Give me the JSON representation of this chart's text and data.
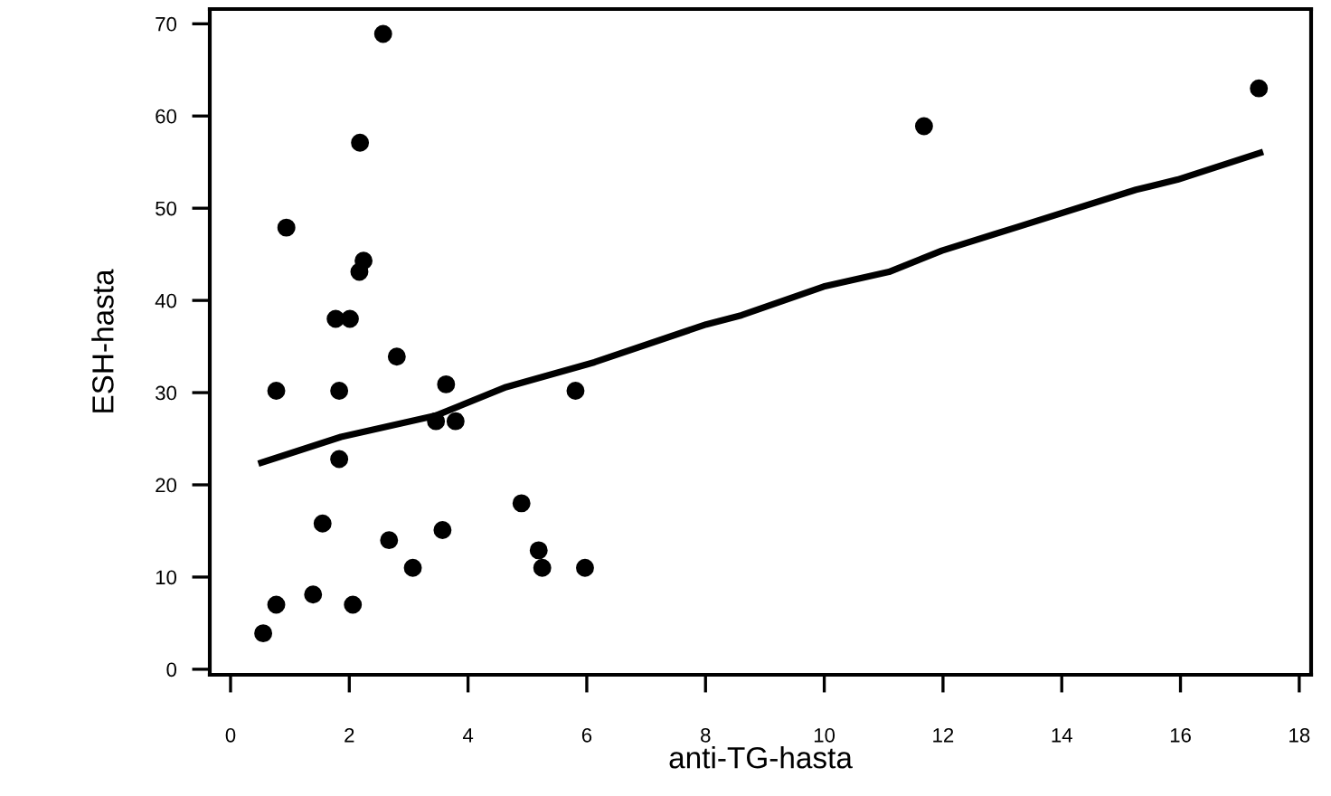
{
  "chart_data": {
    "type": "scatter",
    "xlabel": "anti-TG-hasta",
    "ylabel": "ESH-hasta",
    "xlim": [
      -0.35,
      18.2
    ],
    "ylim": [
      -0.6,
      71.6
    ],
    "xticks": [
      0,
      2,
      4,
      6,
      8,
      10,
      12,
      14,
      16,
      18
    ],
    "yticks": [
      0,
      10,
      20,
      30,
      40,
      50,
      60,
      70
    ],
    "grid": false,
    "legend": false,
    "marker": "circle",
    "series": [
      {
        "color": "#000000",
        "x": [
          0.77,
          1.83,
          3.63,
          5.81,
          3.46,
          3.79,
          1.83,
          4.9,
          1.55,
          3.57,
          2.67,
          5.19,
          5.25,
          5.97,
          3.07,
          1.39,
          0.77,
          2.06,
          0.55,
          2.57,
          2.18,
          0.94,
          2.24,
          2.17,
          1.77,
          2.01,
          2.8,
          11.68,
          17.32
        ],
        "values": [
          30.2,
          30.2,
          30.9,
          30.2,
          26.9,
          26.9,
          22.8,
          18.0,
          15.8,
          15.1,
          14.0,
          12.9,
          11.0,
          11.0,
          11.0,
          8.1,
          7.0,
          7.0,
          3.9,
          68.9,
          57.1,
          47.9,
          44.3,
          43.1,
          38.0,
          38.0,
          33.9,
          58.9,
          63.0
        ]
      },
      {
        "type": "line",
        "color": "#000000",
        "marker": "none",
        "line_style": "solid",
        "x": [
          0.52,
          1.86,
          3.45,
          4.64,
          6.13,
          8.01,
          8.61,
          9.99,
          11.09,
          11.98,
          13.27,
          15.25,
          15.95,
          17.34
        ],
        "values": [
          22.4,
          25.2,
          27.5,
          30.6,
          33.3,
          37.4,
          38.4,
          41.5,
          43.1,
          45.4,
          48.0,
          52.0,
          53.1,
          56.0
        ]
      }
    ]
  }
}
